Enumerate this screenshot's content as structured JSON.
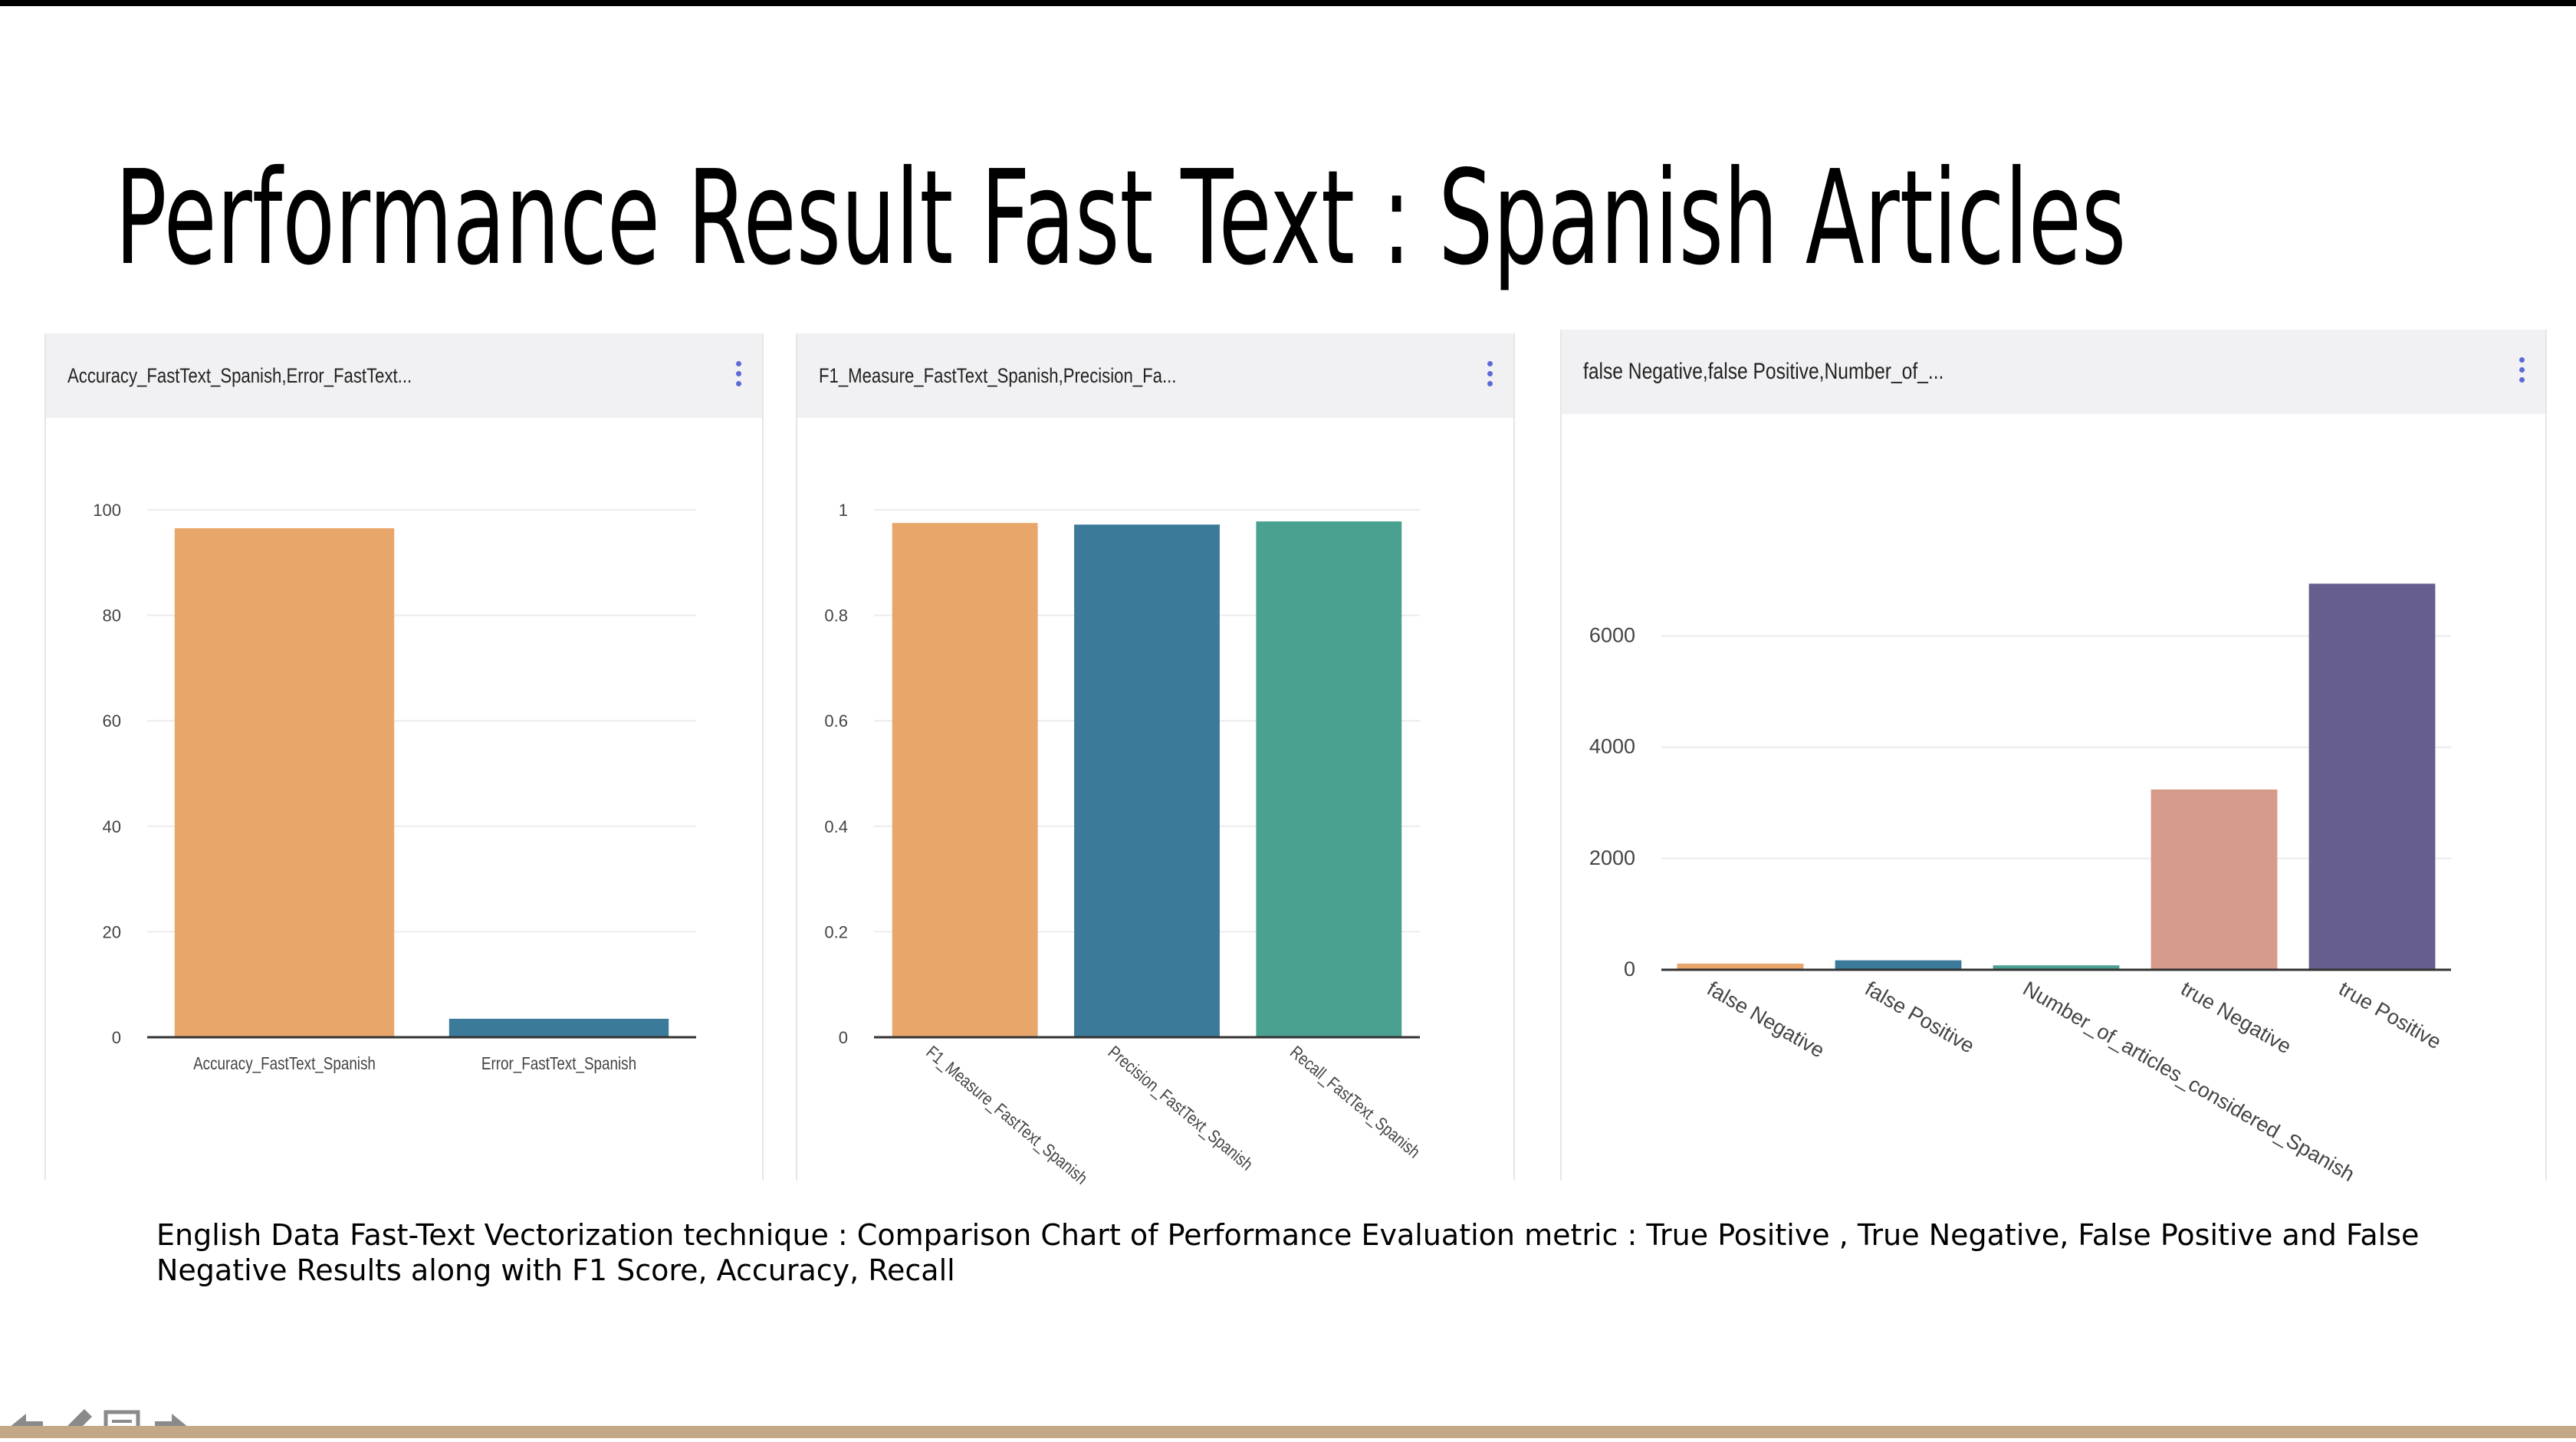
{
  "slide": {
    "title": "Performance Result Fast Text : Spanish Articles",
    "caption": "English Data Fast-Text Vectorization technique : Comparison Chart of Performance Evaluation metric : True Positive , True Negative, False Positive and False Negative Results along with F1 Score, Accuracy, Recall"
  },
  "panels": [
    {
      "title": "Accuracy_FastText_Spanish,Error_FastText..."
    },
    {
      "title": "F1_Measure_FastText_Spanish,Precision_Fa..."
    },
    {
      "title": "false Negative,false Positive,Number_of_..."
    }
  ],
  "nav": [
    "prev-icon",
    "pencil-icon",
    "menu-icon",
    "next-icon"
  ],
  "chart_data": [
    {
      "type": "bar",
      "categories": [
        "Accuracy_FastText_Spanish",
        "Error_FastText_Spanish"
      ],
      "values": [
        96.5,
        3.5
      ],
      "ylim": [
        0,
        100
      ],
      "yticks": [
        0,
        20,
        40,
        60,
        80,
        100
      ],
      "colors": [
        "#e9a66b",
        "#3c7a9a"
      ],
      "grid": true,
      "label_rotation": 0
    },
    {
      "type": "bar",
      "categories": [
        "F1_Measure_FastText_Spanish",
        "Precision_FastText_Spanish",
        "Recall_FastText_Spanish"
      ],
      "values": [
        0.975,
        0.972,
        0.978
      ],
      "ylim": [
        0,
        1
      ],
      "yticks": [
        0,
        0.2,
        0.4,
        0.6,
        0.8,
        1
      ],
      "colors": [
        "#e9a66b",
        "#3c7a9a",
        "#4aa190"
      ],
      "grid": true,
      "label_rotation": 40
    },
    {
      "type": "bar",
      "categories": [
        "false Negative",
        "false Positive",
        "Number_of_articles_considered_Spanish",
        "true Negative",
        "true Positive"
      ],
      "values": [
        110,
        170,
        80,
        3240,
        6940
      ],
      "ylim": [
        0,
        7000
      ],
      "yticks": [
        0,
        2000,
        4000,
        6000
      ],
      "colors": [
        "#e9a66b",
        "#3c7a9a",
        "#4aa190",
        "#d69a8a",
        "#665e8d"
      ],
      "grid": true,
      "label_rotation": 30
    }
  ]
}
